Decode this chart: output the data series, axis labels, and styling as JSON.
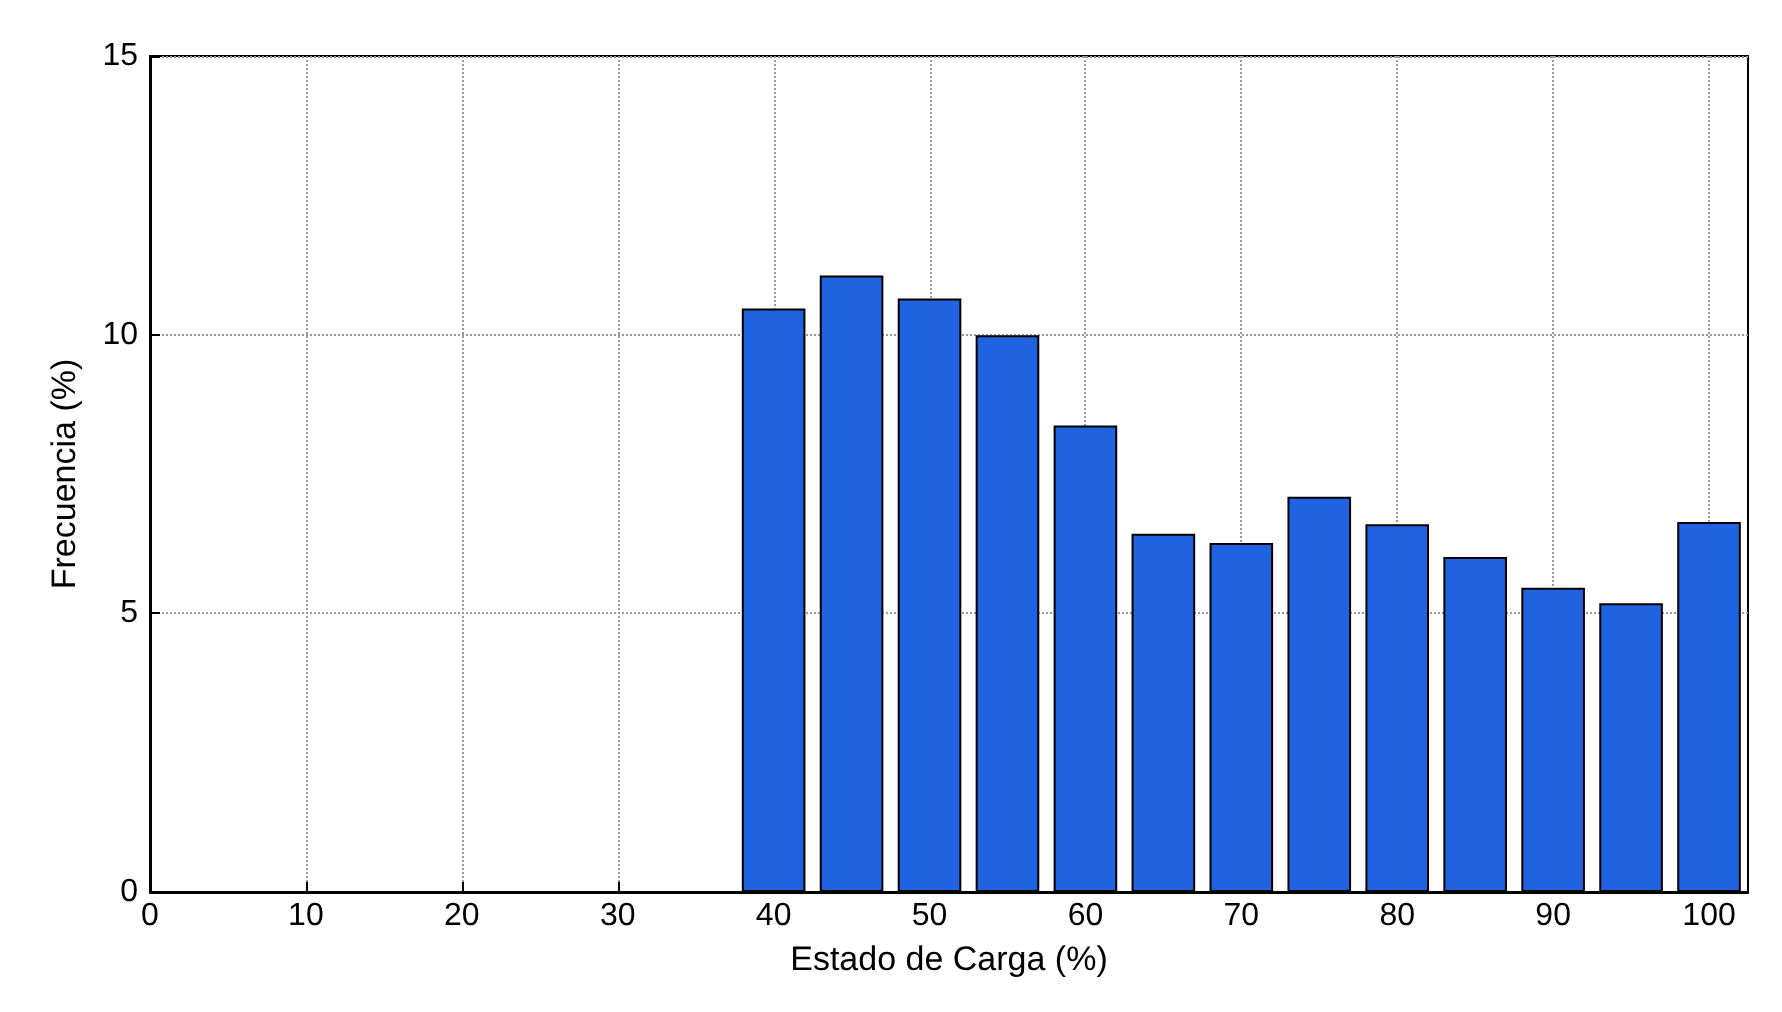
{
  "chart_data": {
    "type": "bar",
    "xlabel": "Estado de Carga (%)",
    "ylabel": "Frecuencia (%)",
    "x": [
      40,
      45,
      50,
      55,
      60,
      65,
      70,
      75,
      80,
      85,
      90,
      95,
      100
    ],
    "values": [
      10.47,
      11.06,
      10.65,
      9.99,
      8.37,
      6.43,
      6.26,
      7.09,
      6.6,
      6.01,
      5.46,
      5.18,
      6.64
    ],
    "color": "#1f63e0",
    "xlim": [
      0,
      102.5
    ],
    "xticks": [
      0,
      10,
      20,
      30,
      40,
      50,
      60,
      70,
      80,
      90,
      100
    ],
    "ylim": [
      0,
      15
    ],
    "yticks": [
      0,
      5,
      10,
      15
    ],
    "grid": true
  }
}
